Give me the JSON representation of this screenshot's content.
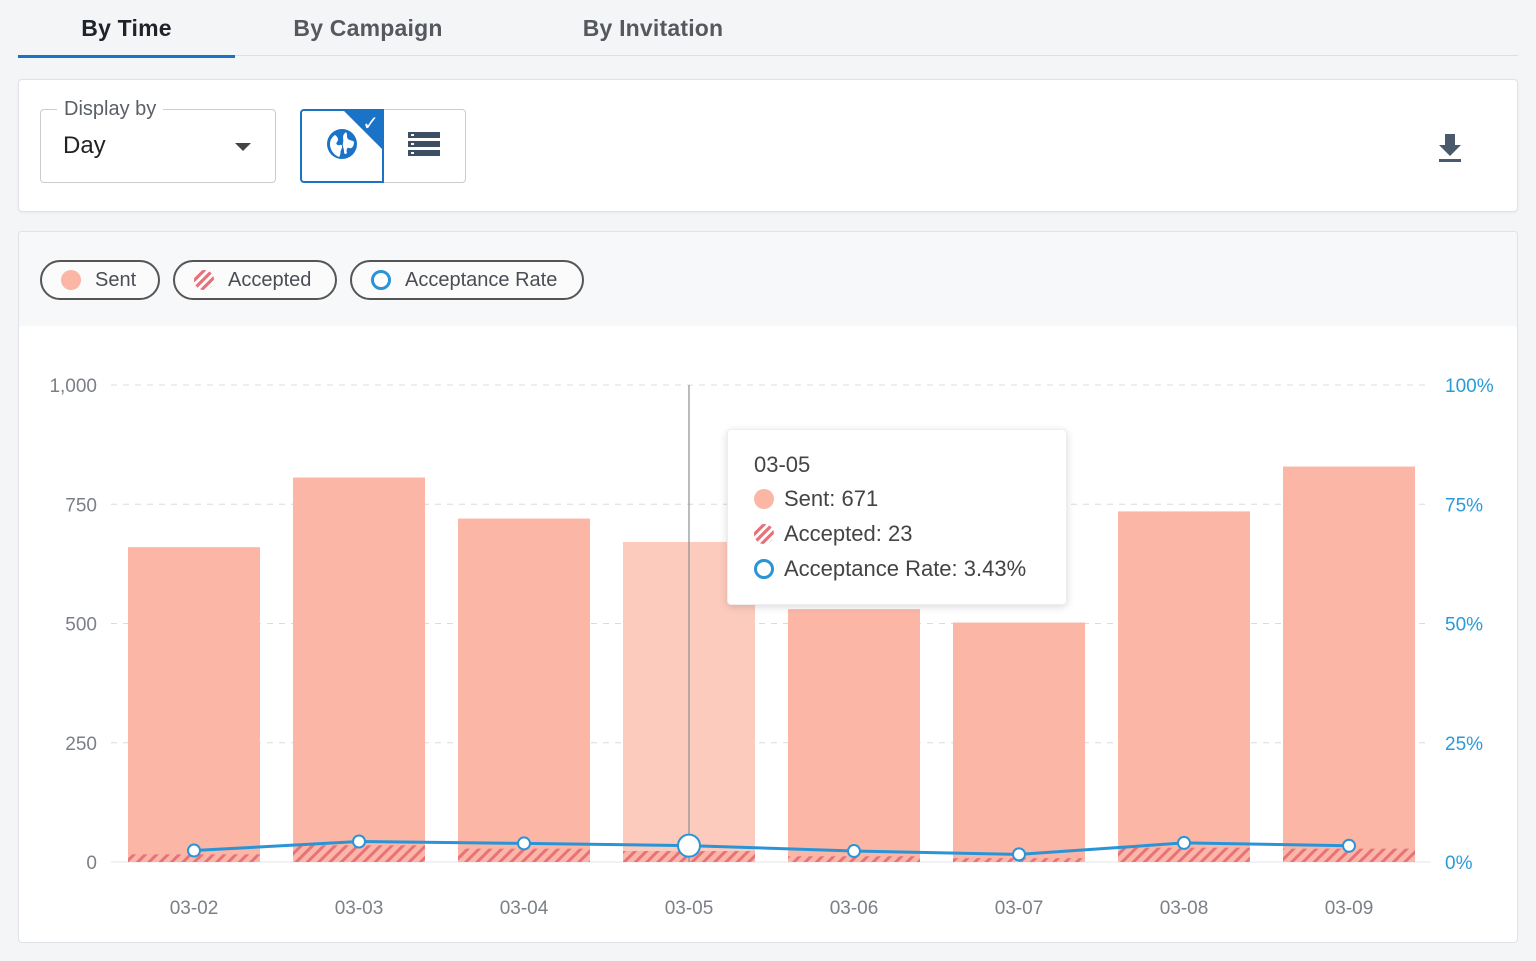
{
  "tabs": [
    {
      "label": "By Time",
      "active": true
    },
    {
      "label": "By Campaign",
      "active": false
    },
    {
      "label": "By Invitation",
      "active": false
    }
  ],
  "toolbar": {
    "display_by_label": "Display by",
    "display_by_value": "Day",
    "view_toggle": [
      "globe-icon",
      "list-icon"
    ],
    "selected_view": "globe-icon",
    "download_icon": "download-icon"
  },
  "legend": {
    "sent": "Sent",
    "accepted": "Accepted",
    "rate": "Acceptance Rate"
  },
  "tooltip": {
    "title": "03-05",
    "sent": "Sent: 671",
    "accepted": "Accepted: 23",
    "rate": "Acceptance Rate: 3.43%"
  },
  "colors": {
    "sent": "#fbb6a6",
    "sent_highlight": "#fdcbbd",
    "accepted": "#e8727b",
    "rate": "#2a94d6",
    "accent": "#1a73c6"
  },
  "chart_data": {
    "type": "bar",
    "categories": [
      "03-02",
      "03-03",
      "03-04",
      "03-05",
      "03-06",
      "03-07",
      "03-08",
      "03-09"
    ],
    "series": [
      {
        "name": "Sent",
        "type": "bar",
        "values": [
          660,
          806,
          720,
          671,
          530,
          502,
          735,
          829
        ]
      },
      {
        "name": "Accepted",
        "type": "bar",
        "values": [
          16,
          35,
          28,
          23,
          12,
          8,
          30,
          28
        ]
      },
      {
        "name": "Acceptance Rate",
        "type": "line",
        "axis": "right",
        "values": [
          2.4,
          4.3,
          3.9,
          3.43,
          2.3,
          1.6,
          4.0,
          3.4
        ]
      }
    ],
    "highlighted_category": "03-05",
    "ylim": [
      0,
      1000
    ],
    "y_ticks": [
      "0",
      "250",
      "500",
      "750",
      "1,000"
    ],
    "y2lim": [
      0,
      100
    ],
    "y2_ticks": [
      "0%",
      "25%",
      "50%",
      "75%",
      "100%"
    ],
    "grid": true
  }
}
